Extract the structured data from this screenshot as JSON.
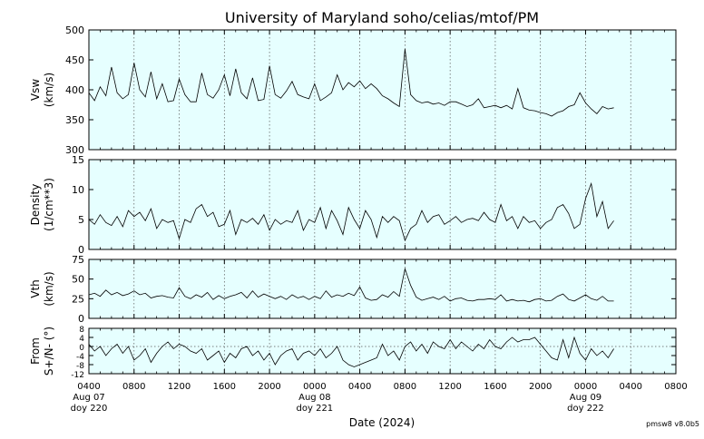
{
  "chart_data": {
    "type": "line",
    "title": "University of Maryland  soho/celias/mtof/PM",
    "xlabel": "Date (2024)",
    "credit": "pmsw8 v8.0b5",
    "plot_bg": "#e6ffff",
    "line_color": "#000000",
    "grid": "vertical dotted",
    "x_range_hours": [
      0,
      52
    ],
    "x_ticks": [
      {
        "h": 0,
        "l1": "0400",
        "l2": "Aug 07",
        "l3": "doy 220"
      },
      {
        "h": 4,
        "l1": "0800"
      },
      {
        "h": 8,
        "l1": "1200"
      },
      {
        "h": 12,
        "l1": "1600"
      },
      {
        "h": 16,
        "l1": "2000"
      },
      {
        "h": 20,
        "l1": "0000",
        "l2": "Aug 08",
        "l3": "doy 221"
      },
      {
        "h": 24,
        "l1": "0400"
      },
      {
        "h": 28,
        "l1": "0800"
      },
      {
        "h": 32,
        "l1": "1200"
      },
      {
        "h": 36,
        "l1": "1600"
      },
      {
        "h": 40,
        "l1": "2000"
      },
      {
        "h": 44,
        "l1": "0000",
        "l2": "Aug 09",
        "l3": "doy 222"
      },
      {
        "h": 48,
        "l1": "0400"
      },
      {
        "h": 52,
        "l1": "0800"
      }
    ],
    "panels": [
      {
        "ylabel1": "Vsw",
        "ylabel2": "(km/s)",
        "ylim": [
          300,
          500
        ],
        "yticks": [
          300,
          350,
          400,
          450,
          500
        ],
        "zero_line": false,
        "x": [
          0,
          0.5,
          1,
          1.5,
          2,
          2.5,
          3,
          3.5,
          4,
          4.5,
          5,
          5.5,
          6,
          6.5,
          7,
          7.5,
          8,
          8.5,
          9,
          9.5,
          10,
          10.5,
          11,
          11.5,
          12,
          12.5,
          13,
          13.5,
          14,
          14.5,
          15,
          15.5,
          16,
          16.5,
          17,
          17.5,
          18,
          18.5,
          19,
          19.5,
          20,
          20.5,
          21,
          21.5,
          22,
          22.5,
          23,
          23.5,
          24,
          24.5,
          25,
          25.5,
          26,
          26.5,
          27,
          27.5,
          28,
          28.5,
          29,
          29.5,
          30,
          30.5,
          31,
          31.5,
          32,
          32.5,
          33,
          33.5,
          34,
          34.5,
          35,
          35.5,
          36,
          36.5,
          37,
          37.5,
          38,
          38.5,
          39,
          39.5,
          40,
          40.5,
          41,
          41.5,
          42,
          42.5,
          43,
          43.5,
          44,
          44.5,
          45,
          45.5,
          46,
          46.5
        ],
        "y": [
          395,
          382,
          405,
          390,
          438,
          395,
          385,
          392,
          445,
          400,
          388,
          430,
          385,
          410,
          380,
          382,
          418,
          392,
          380,
          380,
          428,
          392,
          386,
          400,
          425,
          390,
          435,
          395,
          385,
          420,
          382,
          384,
          440,
          392,
          386,
          398,
          414,
          392,
          388,
          385,
          410,
          382,
          388,
          395,
          425,
          400,
          412,
          405,
          415,
          402,
          410,
          402,
          390,
          385,
          378,
          372,
          468,
          392,
          382,
          378,
          380,
          376,
          378,
          374,
          380,
          380,
          376,
          372,
          375,
          385,
          370,
          372,
          374,
          370,
          374,
          368,
          402,
          370,
          366,
          365,
          362,
          360,
          356,
          362,
          365,
          372,
          375,
          395,
          378,
          368,
          360,
          372,
          368,
          370
        ]
      },
      {
        "ylabel1": "Density",
        "ylabel2": "(1/cm**3)",
        "ylim": [
          0,
          15
        ],
        "yticks": [
          0,
          5,
          10,
          15
        ],
        "zero_line": false,
        "x": [
          0,
          0.5,
          1,
          1.5,
          2,
          2.5,
          3,
          3.5,
          4,
          4.5,
          5,
          5.5,
          6,
          6.5,
          7,
          7.5,
          8,
          8.5,
          9,
          9.5,
          10,
          10.5,
          11,
          11.5,
          12,
          12.5,
          13,
          13.5,
          14,
          14.5,
          15,
          15.5,
          16,
          16.5,
          17,
          17.5,
          18,
          18.5,
          19,
          19.5,
          20,
          20.5,
          21,
          21.5,
          22,
          22.5,
          23,
          23.5,
          24,
          24.5,
          25,
          25.5,
          26,
          26.5,
          27,
          27.5,
          28,
          28.5,
          29,
          29.5,
          30,
          30.5,
          31,
          31.5,
          32,
          32.5,
          33,
          33.5,
          34,
          34.5,
          35,
          35.5,
          36,
          36.5,
          37,
          37.5,
          38,
          38.5,
          39,
          39.5,
          40,
          40.5,
          41,
          41.5,
          42,
          42.5,
          43,
          43.5,
          44,
          44.5,
          45,
          45.5,
          46,
          46.5
        ],
        "y": [
          5,
          4.2,
          5.8,
          4.5,
          4,
          5.5,
          3.8,
          6.5,
          5.5,
          6.2,
          4.8,
          6.8,
          3.5,
          5,
          4.5,
          4.8,
          1.8,
          5,
          4.5,
          6.8,
          7.5,
          5.5,
          6.2,
          3.8,
          4.2,
          6.5,
          2.5,
          5,
          4.5,
          5.2,
          4.2,
          5.8,
          3.2,
          5,
          4.2,
          4.8,
          4.5,
          6.5,
          3.2,
          5,
          4.5,
          7,
          3.5,
          6.5,
          4.8,
          2.5,
          7,
          5,
          3.5,
          6.5,
          5,
          2,
          5.5,
          4.5,
          5.5,
          4.8,
          1.5,
          3.5,
          4.2,
          6.5,
          4.5,
          5.5,
          5.8,
          4.2,
          4.8,
          5.5,
          4.5,
          5,
          5.2,
          4.8,
          6.2,
          5,
          4.5,
          7.5,
          4.8,
          5.5,
          3.5,
          5.5,
          4.5,
          4.8,
          3.5,
          4.5,
          5,
          7,
          7.5,
          6,
          3.5,
          4.2,
          8.5,
          11,
          5.5,
          8,
          3.5,
          4.8
        ]
      },
      {
        "ylabel1": "Vth",
        "ylabel2": "(km/s)",
        "ylim": [
          0,
          75
        ],
        "yticks": [
          0,
          25,
          50,
          75
        ],
        "zero_line": false,
        "x": [
          0,
          0.5,
          1,
          1.5,
          2,
          2.5,
          3,
          3.5,
          4,
          4.5,
          5,
          5.5,
          6,
          6.5,
          7,
          7.5,
          8,
          8.5,
          9,
          9.5,
          10,
          10.5,
          11,
          11.5,
          12,
          12.5,
          13,
          13.5,
          14,
          14.5,
          15,
          15.5,
          16,
          16.5,
          17,
          17.5,
          18,
          18.5,
          19,
          19.5,
          20,
          20.5,
          21,
          21.5,
          22,
          22.5,
          23,
          23.5,
          24,
          24.5,
          25,
          25.5,
          26,
          26.5,
          27,
          27.5,
          28,
          28.5,
          29,
          29.5,
          30,
          30.5,
          31,
          31.5,
          32,
          32.5,
          33,
          33.5,
          34,
          34.5,
          35,
          35.5,
          36,
          36.5,
          37,
          37.5,
          38,
          38.5,
          39,
          39.5,
          40,
          40.5,
          41,
          41.5,
          42,
          42.5,
          43,
          43.5,
          44,
          44.5,
          45,
          45.5,
          46,
          46.5
        ],
        "y": [
          30,
          32,
          28,
          36,
          30,
          33,
          29,
          31,
          35,
          30,
          32,
          26,
          28,
          29,
          27,
          26,
          39,
          28,
          25,
          30,
          27,
          33,
          24,
          29,
          25,
          28,
          30,
          33,
          26,
          35,
          27,
          31,
          28,
          25,
          28,
          24,
          30,
          26,
          28,
          24,
          28,
          25,
          35,
          27,
          30,
          28,
          32,
          29,
          40,
          26,
          23,
          24,
          30,
          27,
          34,
          28,
          63,
          42,
          27,
          23,
          25,
          27,
          24,
          28,
          22,
          25,
          26,
          23,
          22,
          24,
          24,
          25,
          24,
          30,
          22,
          24,
          22,
          23,
          21,
          24,
          25,
          22,
          23,
          28,
          31,
          24,
          22,
          26,
          30,
          25,
          23,
          28,
          22,
          22
        ]
      },
      {
        "ylabel1": "From",
        "ylabel2": "S+/N- (°)",
        "ylim": [
          -12,
          8
        ],
        "yticks": [
          -12,
          -8,
          -4,
          0,
          4,
          8
        ],
        "zero_line": true,
        "x": [
          0,
          0.5,
          1,
          1.5,
          2,
          2.5,
          3,
          3.5,
          4,
          4.5,
          5,
          5.5,
          6,
          6.5,
          7,
          7.5,
          8,
          8.5,
          9,
          9.5,
          10,
          10.5,
          11,
          11.5,
          12,
          12.5,
          13,
          13.5,
          14,
          14.5,
          15,
          15.5,
          16,
          16.5,
          17,
          17.5,
          18,
          18.5,
          19,
          19.5,
          20,
          20.5,
          21,
          21.5,
          22,
          22.5,
          23,
          23.5,
          24,
          24.5,
          25,
          25.5,
          26,
          26.5,
          27,
          27.5,
          28,
          28.5,
          29,
          29.5,
          30,
          30.5,
          31,
          31.5,
          32,
          32.5,
          33,
          33.5,
          34,
          34.5,
          35,
          35.5,
          36,
          36.5,
          37,
          37.5,
          38,
          38.5,
          39,
          39.5,
          40,
          40.5,
          41,
          41.5,
          42,
          42.5,
          43,
          43.5,
          44,
          44.5,
          45,
          45.5,
          46,
          46.5
        ],
        "y": [
          1,
          -2,
          0,
          -4,
          -1,
          1,
          -3,
          0,
          -6,
          -4,
          -1,
          -7,
          -3,
          0,
          2,
          -1,
          1,
          0,
          -2,
          -3,
          -1,
          -6,
          -4,
          -2,
          -7,
          -3,
          -5,
          -1,
          0,
          -4,
          -2,
          -6,
          -3,
          -8,
          -4,
          -2,
          -1,
          -6,
          -3,
          -2,
          -4,
          -1,
          -5,
          -3,
          0,
          -6,
          -8,
          -9,
          -8,
          -7,
          -6,
          -5,
          1,
          -4,
          -2,
          -6,
          0,
          2,
          -2,
          1,
          -3,
          2,
          0,
          -1,
          3,
          -1,
          2,
          0,
          -2,
          1,
          -1,
          3,
          0,
          -1,
          2,
          4,
          2,
          3,
          3,
          4,
          1,
          -2,
          -5,
          -6,
          3,
          -5,
          4,
          -3,
          -6,
          -1,
          -4,
          -2,
          -5,
          -1
        ]
      }
    ]
  }
}
